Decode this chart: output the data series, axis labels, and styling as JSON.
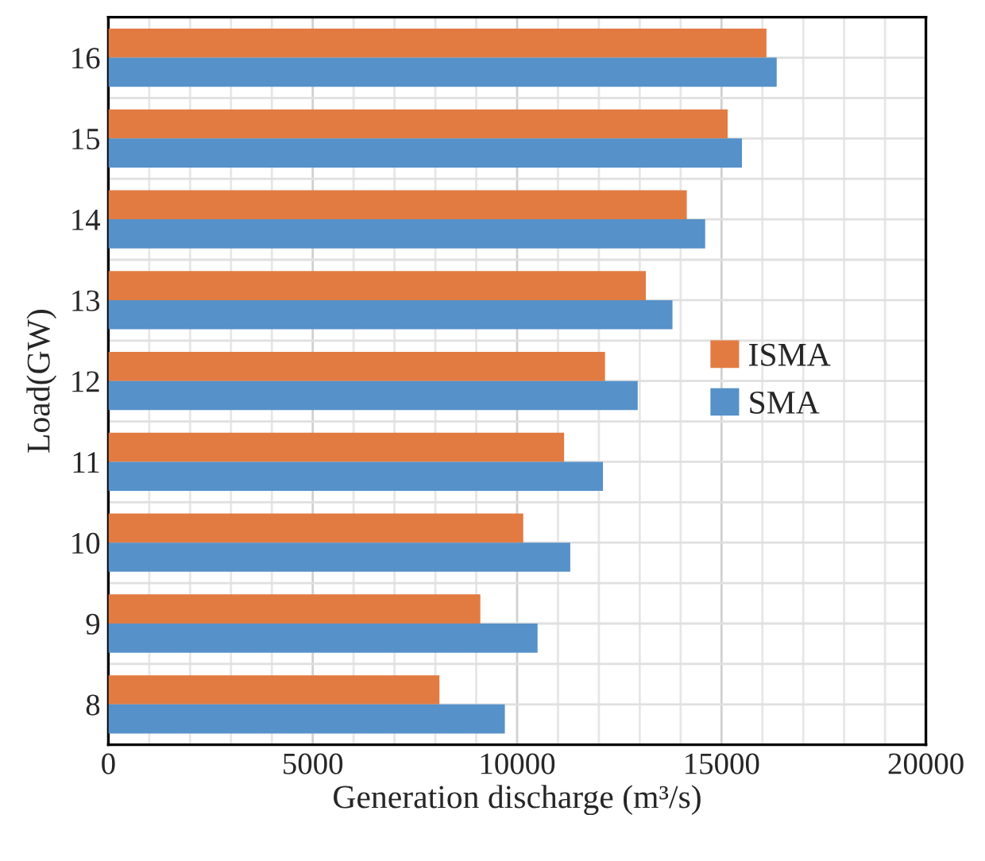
{
  "chart_data": {
    "type": "bar",
    "orientation": "horizontal",
    "categories": [
      "16",
      "15",
      "14",
      "13",
      "12",
      "11",
      "10",
      "9",
      "8"
    ],
    "series": [
      {
        "name": "ISMA",
        "color": "#e27b42",
        "values": [
          16100,
          15150,
          14150,
          13150,
          12150,
          11150,
          10150,
          9100,
          8100
        ]
      },
      {
        "name": "SMA",
        "color": "#5691c9",
        "values": [
          16350,
          15500,
          14600,
          13800,
          12950,
          12100,
          11300,
          10500,
          9700
        ]
      }
    ],
    "xlabel": "Generation discharge (m³/s)",
    "ylabel": "Load(GW)",
    "xlim": [
      0,
      20000
    ],
    "xticks": [
      0,
      {
        "value": 1000,
        "label": null
      },
      {
        "value": 2000,
        "label": null
      },
      {
        "value": 3000,
        "label": null
      },
      {
        "value": 4000,
        "label": null
      },
      5000,
      {
        "value": 6000,
        "label": null
      },
      {
        "value": 7000,
        "label": null
      },
      {
        "value": 8000,
        "label": null
      },
      {
        "value": 9000,
        "label": null
      },
      10000,
      {
        "value": 11000,
        "label": null
      },
      {
        "value": 12000,
        "label": null
      },
      {
        "value": 13000,
        "label": null
      },
      {
        "value": 14000,
        "label": null
      },
      15000,
      {
        "value": 16000,
        "label": null
      },
      {
        "value": 17000,
        "label": null
      },
      {
        "value": 18000,
        "label": null
      },
      {
        "value": 19000,
        "label": null
      },
      20000
    ],
    "grid": true,
    "legend": "right"
  }
}
